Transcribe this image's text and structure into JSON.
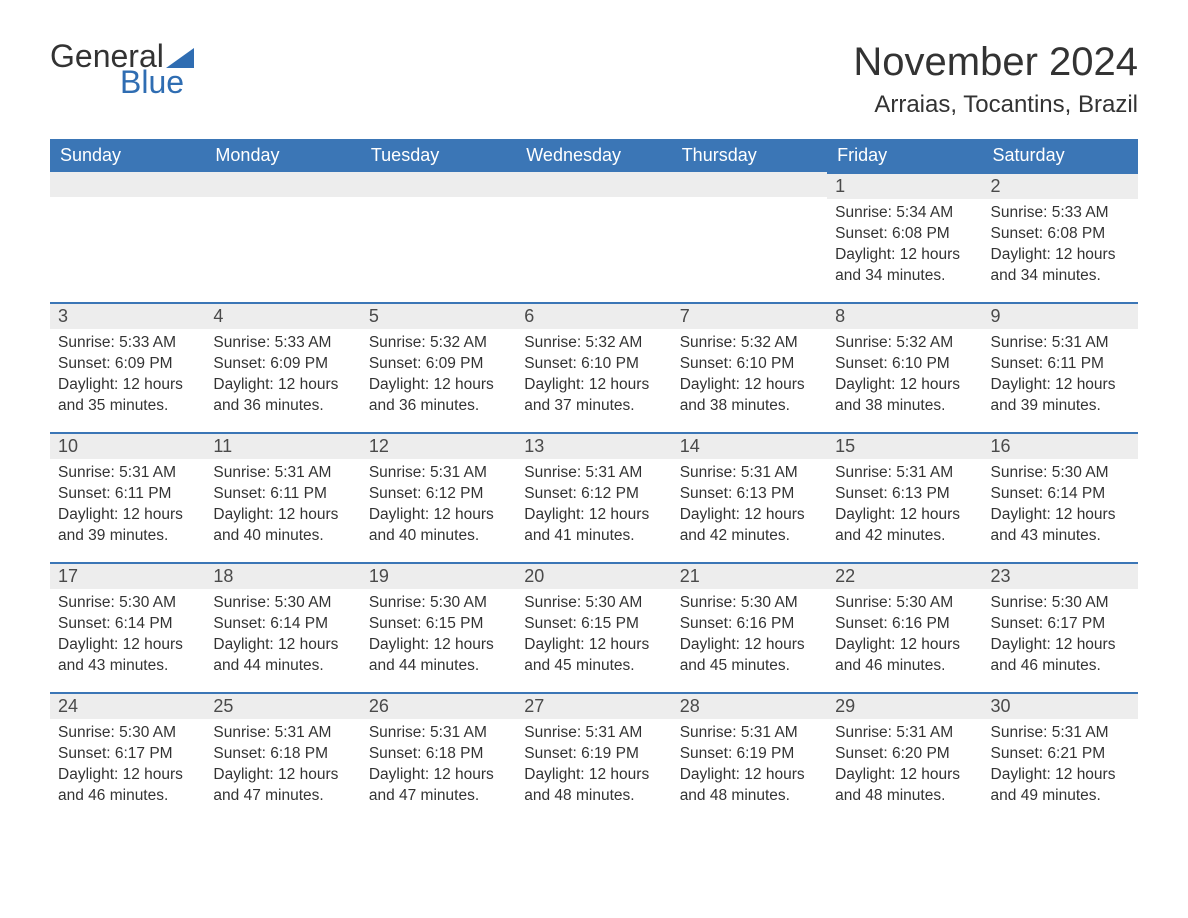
{
  "logo": {
    "word1": "General",
    "word2": "Blue"
  },
  "title": "November 2024",
  "location": "Arraias, Tocantins, Brazil",
  "colors": {
    "header_bg": "#3b76b6",
    "header_text": "#ffffff",
    "daynum_bg": "#ededed",
    "daynum_border": "#3b76b6",
    "body_text": "#333333",
    "logo_accent": "#2f6db2",
    "page_bg": "#ffffff"
  },
  "typography": {
    "title_fontsize": 40,
    "location_fontsize": 24,
    "weekday_fontsize": 18,
    "daynum_fontsize": 18,
    "daybody_fontsize": 15.5,
    "font_family": "Segoe UI"
  },
  "layout": {
    "columns": 7,
    "rows": 5,
    "leading_blanks": 5
  },
  "weekdays": [
    "Sunday",
    "Monday",
    "Tuesday",
    "Wednesday",
    "Thursday",
    "Friday",
    "Saturday"
  ],
  "days": [
    {
      "n": 1,
      "sunrise": "5:34 AM",
      "sunset": "6:08 PM",
      "daylight": "12 hours and 34 minutes."
    },
    {
      "n": 2,
      "sunrise": "5:33 AM",
      "sunset": "6:08 PM",
      "daylight": "12 hours and 34 minutes."
    },
    {
      "n": 3,
      "sunrise": "5:33 AM",
      "sunset": "6:09 PM",
      "daylight": "12 hours and 35 minutes."
    },
    {
      "n": 4,
      "sunrise": "5:33 AM",
      "sunset": "6:09 PM",
      "daylight": "12 hours and 36 minutes."
    },
    {
      "n": 5,
      "sunrise": "5:32 AM",
      "sunset": "6:09 PM",
      "daylight": "12 hours and 36 minutes."
    },
    {
      "n": 6,
      "sunrise": "5:32 AM",
      "sunset": "6:10 PM",
      "daylight": "12 hours and 37 minutes."
    },
    {
      "n": 7,
      "sunrise": "5:32 AM",
      "sunset": "6:10 PM",
      "daylight": "12 hours and 38 minutes."
    },
    {
      "n": 8,
      "sunrise": "5:32 AM",
      "sunset": "6:10 PM",
      "daylight": "12 hours and 38 minutes."
    },
    {
      "n": 9,
      "sunrise": "5:31 AM",
      "sunset": "6:11 PM",
      "daylight": "12 hours and 39 minutes."
    },
    {
      "n": 10,
      "sunrise": "5:31 AM",
      "sunset": "6:11 PM",
      "daylight": "12 hours and 39 minutes."
    },
    {
      "n": 11,
      "sunrise": "5:31 AM",
      "sunset": "6:11 PM",
      "daylight": "12 hours and 40 minutes."
    },
    {
      "n": 12,
      "sunrise": "5:31 AM",
      "sunset": "6:12 PM",
      "daylight": "12 hours and 40 minutes."
    },
    {
      "n": 13,
      "sunrise": "5:31 AM",
      "sunset": "6:12 PM",
      "daylight": "12 hours and 41 minutes."
    },
    {
      "n": 14,
      "sunrise": "5:31 AM",
      "sunset": "6:13 PM",
      "daylight": "12 hours and 42 minutes."
    },
    {
      "n": 15,
      "sunrise": "5:31 AM",
      "sunset": "6:13 PM",
      "daylight": "12 hours and 42 minutes."
    },
    {
      "n": 16,
      "sunrise": "5:30 AM",
      "sunset": "6:14 PM",
      "daylight": "12 hours and 43 minutes."
    },
    {
      "n": 17,
      "sunrise": "5:30 AM",
      "sunset": "6:14 PM",
      "daylight": "12 hours and 43 minutes."
    },
    {
      "n": 18,
      "sunrise": "5:30 AM",
      "sunset": "6:14 PM",
      "daylight": "12 hours and 44 minutes."
    },
    {
      "n": 19,
      "sunrise": "5:30 AM",
      "sunset": "6:15 PM",
      "daylight": "12 hours and 44 minutes."
    },
    {
      "n": 20,
      "sunrise": "5:30 AM",
      "sunset": "6:15 PM",
      "daylight": "12 hours and 45 minutes."
    },
    {
      "n": 21,
      "sunrise": "5:30 AM",
      "sunset": "6:16 PM",
      "daylight": "12 hours and 45 minutes."
    },
    {
      "n": 22,
      "sunrise": "5:30 AM",
      "sunset": "6:16 PM",
      "daylight": "12 hours and 46 minutes."
    },
    {
      "n": 23,
      "sunrise": "5:30 AM",
      "sunset": "6:17 PM",
      "daylight": "12 hours and 46 minutes."
    },
    {
      "n": 24,
      "sunrise": "5:30 AM",
      "sunset": "6:17 PM",
      "daylight": "12 hours and 46 minutes."
    },
    {
      "n": 25,
      "sunrise": "5:31 AM",
      "sunset": "6:18 PM",
      "daylight": "12 hours and 47 minutes."
    },
    {
      "n": 26,
      "sunrise": "5:31 AM",
      "sunset": "6:18 PM",
      "daylight": "12 hours and 47 minutes."
    },
    {
      "n": 27,
      "sunrise": "5:31 AM",
      "sunset": "6:19 PM",
      "daylight": "12 hours and 48 minutes."
    },
    {
      "n": 28,
      "sunrise": "5:31 AM",
      "sunset": "6:19 PM",
      "daylight": "12 hours and 48 minutes."
    },
    {
      "n": 29,
      "sunrise": "5:31 AM",
      "sunset": "6:20 PM",
      "daylight": "12 hours and 48 minutes."
    },
    {
      "n": 30,
      "sunrise": "5:31 AM",
      "sunset": "6:21 PM",
      "daylight": "12 hours and 49 minutes."
    }
  ],
  "labels": {
    "sunrise": "Sunrise:",
    "sunset": "Sunset:",
    "daylight": "Daylight:"
  }
}
